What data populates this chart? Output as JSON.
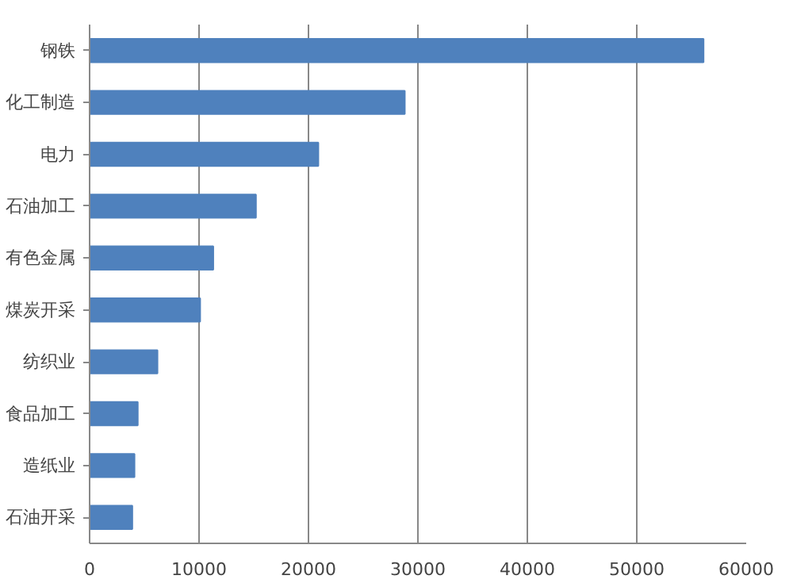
{
  "chart_data": {
    "type": "bar",
    "orientation": "horizontal",
    "categories": [
      "钢铁",
      "化工制造",
      "电力",
      "石油加工",
      "有色金属",
      "煤炭开采",
      "纺织业",
      "食品加工",
      "造纸业",
      "石油开采"
    ],
    "values": [
      56100,
      28800,
      20900,
      15200,
      11300,
      10100,
      6200,
      4400,
      4100,
      3900
    ],
    "color": "#4f81bd",
    "xlim": [
      0,
      60000
    ],
    "xticks": [
      0,
      10000,
      20000,
      30000,
      40000,
      50000,
      60000
    ],
    "grid": "x"
  }
}
